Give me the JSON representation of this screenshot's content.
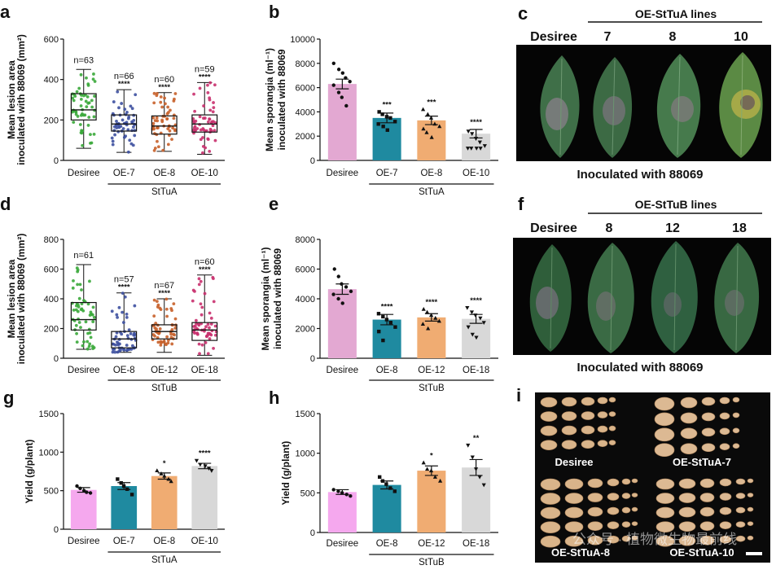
{
  "chart_data": [
    {
      "panel": "a",
      "type": "box",
      "ylabel_line1": "Mean lesion area",
      "ylabel_line2": "inoculated with 88069 (mm²)",
      "ylim": [
        0,
        600
      ],
      "yticks": [
        0,
        200,
        400,
        600
      ],
      "categories": [
        "Desiree",
        "OE-7",
        "OE-8",
        "OE-10"
      ],
      "group_label": "StTuA",
      "colors": [
        "#3aa83a",
        "#3d50a0",
        "#c8602a",
        "#c9306e"
      ],
      "n_labels": [
        "n=63",
        "n=66",
        "n=60",
        "n=59"
      ],
      "stars": [
        "",
        "****",
        "****",
        "****"
      ],
      "boxes": [
        {
          "min": 60,
          "q1": 200,
          "median": 250,
          "q3": 330,
          "max": 450
        },
        {
          "min": 40,
          "q1": 145,
          "median": 180,
          "q3": 225,
          "max": 350
        },
        {
          "min": 45,
          "q1": 130,
          "median": 170,
          "q3": 220,
          "max": 335
        },
        {
          "min": 30,
          "q1": 140,
          "median": 180,
          "q3": 225,
          "max": 385
        }
      ]
    },
    {
      "panel": "b",
      "type": "bar",
      "ylabel_line1": "Mean sporangia (ml⁻¹)",
      "ylabel_line2": "inoculated with 88069",
      "ylim": [
        0,
        10000
      ],
      "yticks": [
        0,
        2000,
        4000,
        6000,
        8000,
        10000
      ],
      "categories": [
        "Desiree",
        "OE-7",
        "OE-8",
        "OE-10"
      ],
      "group_label": "StTuA",
      "colors": [
        "#e3a8d2",
        "#1f8aa0",
        "#f0ac72",
        "#d8d8d8"
      ],
      "values": [
        6300,
        3500,
        3300,
        2200
      ],
      "errors": [
        400,
        400,
        350,
        350
      ],
      "stars": [
        "",
        "***",
        "***",
        "****"
      ],
      "points": [
        [
          8000,
          7500,
          7200,
          6800,
          6500,
          6200,
          5600,
          5200,
          4500
        ],
        [
          4000,
          3800,
          3600,
          3500,
          3200,
          3000,
          2800,
          2500
        ],
        [
          4200,
          3800,
          3500,
          3000,
          2800,
          2600,
          2300,
          1900
        ],
        [
          2400,
          2200,
          1800,
          1500,
          1200,
          1000,
          1000,
          1000,
          1000
        ]
      ]
    },
    {
      "panel": "d",
      "type": "box",
      "ylabel_line1": "Mean lesion area",
      "ylabel_line2": "inoculated with 88069 (mm²)",
      "ylim": [
        0,
        800
      ],
      "yticks": [
        0,
        200,
        400,
        600,
        800
      ],
      "categories": [
        "Desiree",
        "OE-8",
        "OE-12",
        "OE-18"
      ],
      "group_label": "StTuB",
      "colors": [
        "#3aa83a",
        "#3d50a0",
        "#c8602a",
        "#c9306e"
      ],
      "n_labels": [
        "n=61",
        "n=57",
        "n=67",
        "n=60"
      ],
      "stars": [
        "",
        "****",
        "****",
        "****"
      ],
      "boxes": [
        {
          "min": 60,
          "q1": 190,
          "median": 260,
          "q3": 375,
          "max": 630
        },
        {
          "min": 40,
          "q1": 70,
          "median": 130,
          "q3": 180,
          "max": 440
        },
        {
          "min": 40,
          "q1": 130,
          "median": 180,
          "q3": 225,
          "max": 400
        },
        {
          "min": 20,
          "q1": 120,
          "median": 190,
          "q3": 240,
          "max": 560
        }
      ]
    },
    {
      "panel": "e",
      "type": "bar",
      "ylabel_line1": "Mean sporangia (ml⁻¹)",
      "ylabel_line2": "inoculated with 88069",
      "ylim": [
        0,
        8000
      ],
      "yticks": [
        0,
        2000,
        4000,
        6000,
        8000
      ],
      "categories": [
        "Desiree",
        "OE-8",
        "OE-12",
        "OE-18"
      ],
      "group_label": "StTuB",
      "colors": [
        "#e3a8d2",
        "#1f8aa0",
        "#f0ac72",
        "#d8d8d8"
      ],
      "values": [
        4650,
        2600,
        2750,
        2650
      ],
      "errors": [
        350,
        350,
        250,
        300
      ],
      "stars": [
        "",
        "****",
        "****",
        "****"
      ],
      "points": [
        [
          6000,
          5500,
          5000,
          4800,
          4500,
          4300,
          4000,
          3700
        ],
        [
          3000,
          2800,
          2600,
          2400,
          2100,
          1800,
          1200
        ],
        [
          3300,
          3100,
          2900,
          2700,
          2500,
          2300,
          2000
        ],
        [
          3400,
          3100,
          2900,
          2700,
          2400,
          2100,
          1600,
          1400
        ]
      ]
    },
    {
      "panel": "g",
      "type": "bar",
      "ylabel": "Yield (g/plant)",
      "ylim": [
        0,
        1500
      ],
      "yticks": [
        0,
        500,
        1000,
        1500
      ],
      "categories": [
        "Desiree",
        "OE-7",
        "OE-8",
        "OE-10"
      ],
      "group_label": "StTuA",
      "colors": [
        "#f5a8ee",
        "#1f8aa0",
        "#f0ac72",
        "#d8d8d8"
      ],
      "values": [
        510,
        560,
        690,
        820
      ],
      "errors": [
        30,
        45,
        40,
        35
      ],
      "stars": [
        "",
        "",
        "*",
        "****"
      ],
      "points": [
        [
          560,
          530,
          500,
          480,
          470
        ],
        [
          650,
          600,
          560,
          520,
          450
        ],
        [
          760,
          720,
          690,
          650,
          620
        ],
        [
          890,
          840,
          820,
          790,
          760
        ]
      ]
    },
    {
      "panel": "h",
      "type": "bar",
      "ylabel": "Yield (g/plant)",
      "ylim": [
        0,
        1500
      ],
      "yticks": [
        0,
        500,
        1000,
        1500
      ],
      "categories": [
        "Desiree",
        "OE-8",
        "OE-12",
        "OE-18"
      ],
      "group_label": "StTuB",
      "colors": [
        "#f5a8ee",
        "#1f8aa0",
        "#f0ac72",
        "#d8d8d8"
      ],
      "values": [
        510,
        600,
        780,
        820
      ],
      "errors": [
        30,
        50,
        60,
        100
      ],
      "stars": [
        "",
        "",
        "*",
        "**"
      ],
      "points": [
        [
          540,
          520,
          500,
          480,
          460
        ],
        [
          700,
          650,
          610,
          560,
          520
        ],
        [
          880,
          800,
          780,
          700,
          650
        ],
        [
          1100,
          950,
          800,
          700,
          600
        ]
      ]
    }
  ],
  "photos": {
    "c": {
      "letter": "c",
      "header": "OE-StTuA lines",
      "col_labels": [
        "Desiree",
        "7",
        "8",
        "10"
      ],
      "caption": "Inoculated with 88069"
    },
    "f": {
      "letter": "f",
      "header": "OE-StTuB lines",
      "col_labels": [
        "Desiree",
        "8",
        "12",
        "18"
      ],
      "caption": "Inoculated with 88069"
    },
    "i": {
      "letter": "i",
      "labels": [
        "Desiree",
        "OE-StTuA-7",
        "OE-StTuA-8",
        "OE-StTuA-10"
      ],
      "watermark": "公众号 · 植物微生物最前线"
    }
  }
}
